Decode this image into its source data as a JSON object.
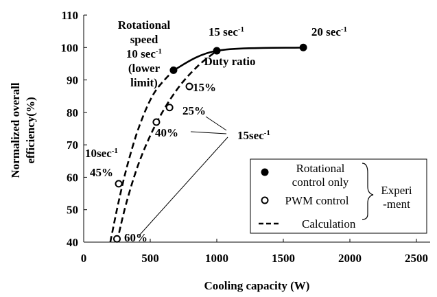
{
  "chart_data": {
    "type": "scatter",
    "xlabel": "Cooling capacity (W)",
    "ylabel": [
      "Normalized overall",
      "efficiency(%)"
    ],
    "xlim": [
      0,
      2500
    ],
    "xticks": [
      0,
      500,
      1000,
      1500,
      2000,
      2500
    ],
    "ylim": [
      40,
      110
    ],
    "yticks": [
      40,
      50,
      60,
      70,
      80,
      90,
      100,
      110
    ],
    "series": [
      {
        "name": "Rotational control only",
        "marker": "filled",
        "color": "#000000",
        "line": "solid",
        "x": [
          675,
          1000,
          1650
        ],
        "values": [
          93,
          99,
          100
        ]
      },
      {
        "name": "PWM control",
        "marker": "open",
        "color": "#000000",
        "x": [
          794,
          645,
          546,
          263,
          250
        ],
        "values": [
          88,
          81.5,
          77,
          58,
          41
        ]
      },
      {
        "name": "Calculation",
        "marker": "none",
        "color": "#000000",
        "line": "dashed",
        "x": [
          200,
          260,
          330,
          420,
          530,
          675,
          null,
          250,
          320,
          420,
          550,
          700,
          850,
          1000
        ],
        "values": [
          40,
          52,
          64,
          76,
          86,
          93,
          null,
          40,
          52,
          65,
          77,
          87,
          94,
          99
        ]
      }
    ],
    "legend_group": [
      "Experi",
      "-ment"
    ],
    "annotations": [
      [
        [
          {
            "text": "Rotational"
          }
        ],
        [
          {
            "text": "speed"
          }
        ],
        [
          {
            "text": "10 sec"
          },
          {
            "text": "-1",
            "sup": true
          }
        ],
        [
          {
            "text": "(lower"
          }
        ],
        [
          {
            "text": "limit)"
          }
        ]
      ],
      [
        [
          {
            "text": "15 sec"
          },
          {
            "text": "-1",
            "sup": true
          }
        ]
      ],
      [
        [
          {
            "text": "20 sec"
          },
          {
            "text": "-1",
            "sup": true
          }
        ]
      ],
      [
        [
          {
            "text": "Duty ratio"
          }
        ]
      ],
      [
        [
          {
            "text": "15%"
          }
        ]
      ],
      [
        [
          {
            "text": "25%"
          }
        ]
      ],
      [
        [
          {
            "text": "40%"
          }
        ]
      ],
      [
        [
          {
            "text": "15sec"
          },
          {
            "text": "-1",
            "sup": true
          }
        ]
      ],
      [
        [
          {
            "text": "10sec"
          },
          {
            "text": "-1",
            "sup": true
          }
        ]
      ],
      [
        [
          {
            "text": "45%"
          }
        ]
      ],
      [
        [
          {
            "text": "60%"
          }
        ]
      ]
    ]
  }
}
